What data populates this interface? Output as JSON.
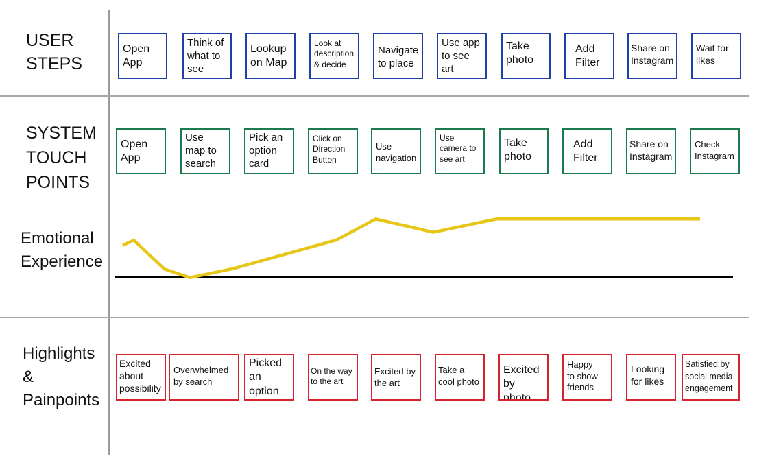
{
  "rows": {
    "user_steps": {
      "label_lines": [
        "USER",
        "STEPS"
      ]
    },
    "system_touch_points": {
      "label_lines": [
        "SYSTEM",
        "TOUCH",
        "POINTS"
      ]
    },
    "emotional_experience": {
      "label_lines": [
        "Emotional",
        "Experience"
      ]
    },
    "highlights": {
      "label_lines": [
        "Highlights",
        "&",
        "Painpoints"
      ]
    }
  },
  "user_steps": [
    "Open\nApp",
    "Think of\nwhat to\nsee",
    "Lookup\non Map",
    "Look at\ndescription\n& decide",
    "Navigate\nto place",
    "Use app\nto see\nart",
    "Take\nphoto",
    "Add\nFilter",
    "Share on\nInstagram",
    "Wait for\nlikes"
  ],
  "touch_points": [
    "Open\nApp",
    "Use\nmap to\nsearch",
    "Pick an\noption\ncard",
    "Click on\nDirection\nButton",
    "Use\nnavigation",
    "Use\ncamera to\nsee art",
    "Take\nphoto",
    "Add\nFilter",
    "Share on\nInstagram",
    "Check\nInstagram"
  ],
  "highlights": [
    "Excited\nabout\npossibility",
    "Overwhelmed\nby search",
    "Picked\nan\noption",
    "On the way\nto the art",
    "Excited by\nthe art",
    "Take a\ncool photo",
    "Excited\nby photo",
    "Happy\nto show\nfriends",
    "Looking\nfor likes",
    "Satisfied  by\nsocial media\nengagement"
  ],
  "colors": {
    "user_step_border": "#1f3fa8",
    "touch_point_border": "#1c7a4f",
    "highlight_border": "#d6232f",
    "emotion_line": "#e6c619",
    "baseline": "#000000",
    "dividers": "#a8a8a8"
  },
  "emotion_curve": {
    "description_values": [
      6.0,
      7.0,
      1.5,
      -0.1,
      1.6,
      7.0,
      11.0,
      8.5,
      11.0,
      11.0,
      11.0,
      11.0,
      11.0
    ],
    "baseline_value": 0
  }
}
